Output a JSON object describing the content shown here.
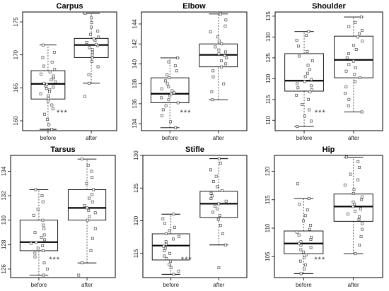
{
  "chart_data": [
    {
      "type": "box",
      "title": "Carpus",
      "categories": [
        "before",
        "after"
      ],
      "ylim": [
        158.5,
        176.5
      ],
      "yticks": [
        160,
        165,
        170,
        175
      ],
      "annotation": "***",
      "boxes": [
        {
          "category": "before",
          "whisker_low": 158.7,
          "q1": 163.3,
          "median": 165.6,
          "q3": 167.6,
          "whisker_high": 171.5
        },
        {
          "category": "after",
          "whisker_low": 165.7,
          "q1": 169.6,
          "median": 171.5,
          "q3": 172.5,
          "whisker_high": 176.3
        }
      ],
      "points": {
        "before": [
          158.7,
          159.4,
          160.2,
          161.0,
          161.8,
          162.4,
          163.0,
          163.4,
          163.8,
          164.1,
          164.4,
          164.7,
          164.9,
          165.1,
          165.3,
          165.5,
          165.7,
          165.9,
          166.2,
          166.5,
          166.8,
          167.1,
          167.4,
          167.8,
          168.3,
          168.9,
          169.6,
          170.4,
          171.5
        ],
        "after": [
          163.7,
          165.7,
          167.0,
          168.2,
          169.0,
          169.6,
          170.0,
          170.4,
          170.8,
          171.1,
          171.4,
          171.6,
          171.9,
          172.2,
          172.4,
          172.7,
          173.1,
          173.6,
          174.2,
          174.9,
          175.6,
          176.3
        ]
      }
    },
    {
      "type": "box",
      "title": "Elbow",
      "categories": [
        "before",
        "after"
      ],
      "ylim": [
        133.3,
        145.2
      ],
      "yticks": [
        134,
        136,
        138,
        140,
        142,
        144
      ],
      "annotation": "***",
      "boxes": [
        {
          "category": "before",
          "whisker_low": 133.6,
          "q1": 136.1,
          "median": 137.0,
          "q3": 138.6,
          "whisker_high": 140.6
        },
        {
          "category": "after",
          "whisker_low": 136.4,
          "q1": 139.7,
          "median": 140.9,
          "q3": 142.0,
          "whisker_high": 145.0
        }
      ],
      "points": {
        "before": [
          133.6,
          134.2,
          134.8,
          135.4,
          135.8,
          136.1,
          136.4,
          136.6,
          136.8,
          137.0,
          137.1,
          137.3,
          137.5,
          137.7,
          138.0,
          138.3,
          138.6,
          138.9,
          139.3,
          139.8,
          140.2,
          140.6
        ],
        "after": [
          136.4,
          137.2,
          138.0,
          138.7,
          139.3,
          139.7,
          140.0,
          140.3,
          140.6,
          140.8,
          141.0,
          141.2,
          141.4,
          141.7,
          142.0,
          142.3,
          142.7,
          143.2,
          143.8,
          144.4,
          145.0
        ]
      }
    },
    {
      "type": "box",
      "title": "Shoulder",
      "categories": [
        "before",
        "after"
      ],
      "ylim": [
        107.5,
        136.0
      ],
      "yticks": [
        110,
        115,
        120,
        125,
        130,
        135
      ],
      "annotation": "***",
      "boxes": [
        {
          "category": "before",
          "whisker_low": 108.5,
          "q1": 117.0,
          "median": 119.5,
          "q3": 126.0,
          "whisker_high": 131.3
        },
        {
          "category": "after",
          "whisker_low": 112.0,
          "q1": 120.2,
          "median": 124.5,
          "q3": 130.2,
          "whisker_high": 134.8
        }
      ],
      "points": {
        "before": [
          108.5,
          109.8,
          111.0,
          112.5,
          113.8,
          115.0,
          116.0,
          116.8,
          117.3,
          117.8,
          118.3,
          118.8,
          119.3,
          119.8,
          120.5,
          121.3,
          122.2,
          123.2,
          124.3,
          125.4,
          126.5,
          127.8,
          129.2,
          130.4,
          131.3
        ],
        "after": [
          112.0,
          113.5,
          115.0,
          116.5,
          118.0,
          119.3,
          120.2,
          121.0,
          121.8,
          122.6,
          123.4,
          124.2,
          125.0,
          126.0,
          127.0,
          128.0,
          129.0,
          130.0,
          130.8,
          131.6,
          132.5,
          133.5,
          134.8
        ]
      }
    },
    {
      "type": "box",
      "title": "Tarsus",
      "categories": [
        "before",
        "after"
      ],
      "ylim": [
        125.3,
        135.3
      ],
      "yticks": [
        126,
        128,
        130,
        132,
        134
      ],
      "annotation": "***",
      "boxes": [
        {
          "category": "before",
          "whisker_low": 125.5,
          "q1": 127.5,
          "median": 128.2,
          "q3": 130.0,
          "whisker_high": 132.5
        },
        {
          "category": "after",
          "whisker_low": 126.5,
          "q1": 130.0,
          "median": 131.0,
          "q3": 132.5,
          "whisker_high": 135.0
        }
      ],
      "points": {
        "before": [
          125.5,
          126.0,
          126.5,
          127.0,
          127.3,
          127.5,
          127.7,
          127.9,
          128.1,
          128.2,
          128.4,
          128.6,
          128.8,
          129.0,
          129.3,
          129.6,
          130.0,
          130.4,
          130.9,
          131.5,
          132.0,
          132.5
        ],
        "after": [
          125.5,
          126.5,
          127.5,
          128.5,
          129.3,
          130.0,
          130.3,
          130.6,
          130.8,
          131.0,
          131.2,
          131.5,
          131.8,
          132.1,
          132.5,
          133.0,
          133.5,
          134.0,
          134.5,
          135.0
        ]
      }
    },
    {
      "type": "box",
      "title": "Stifle",
      "categories": [
        "before",
        "after"
      ],
      "ylim": [
        111.3,
        130.0
      ],
      "yticks": [
        115,
        120,
        125,
        130
      ],
      "annotation": "***",
      "boxes": [
        {
          "category": "before",
          "whisker_low": 111.8,
          "q1": 114.0,
          "median": 116.2,
          "q3": 118.0,
          "whisker_high": 121.0
        },
        {
          "category": "after",
          "whisker_low": 116.3,
          "q1": 120.5,
          "median": 122.6,
          "q3": 124.5,
          "whisker_high": 129.5
        }
      ],
      "points": {
        "before": [
          111.8,
          112.3,
          112.8,
          113.3,
          113.8,
          114.2,
          114.6,
          115.0,
          115.4,
          115.8,
          116.1,
          116.4,
          116.8,
          117.2,
          117.6,
          118.0,
          118.5,
          119.0,
          119.6,
          120.3,
          121.0
        ],
        "after": [
          112.8,
          116.3,
          118.0,
          119.3,
          120.2,
          120.8,
          121.3,
          121.8,
          122.2,
          122.6,
          123.0,
          123.4,
          123.8,
          124.2,
          124.6,
          125.2,
          126.0,
          126.8,
          127.8,
          128.8,
          129.5
        ]
      }
    },
    {
      "type": "box",
      "title": "Hip",
      "categories": [
        "before",
        "after"
      ],
      "ylim": [
        101.3,
        122.8
      ],
      "yticks": [
        105,
        110,
        115,
        120
      ],
      "annotation": "***",
      "boxes": [
        {
          "category": "before",
          "whisker_low": 102.0,
          "q1": 105.5,
          "median": 107.3,
          "q3": 109.5,
          "whisker_high": 115.2
        },
        {
          "category": "after",
          "whisker_low": 105.5,
          "q1": 111.2,
          "median": 113.8,
          "q3": 116.0,
          "whisker_high": 122.5
        }
      ],
      "points": {
        "before": [
          102.0,
          102.8,
          103.5,
          104.2,
          104.8,
          105.3,
          105.8,
          106.2,
          106.6,
          107.0,
          107.3,
          107.6,
          108.0,
          108.4,
          108.8,
          109.3,
          109.8,
          110.5,
          111.3,
          112.2,
          113.2,
          114.2,
          115.2,
          117.8
        ],
        "after": [
          105.5,
          107.0,
          108.5,
          109.8,
          110.8,
          111.5,
          112.0,
          112.5,
          113.0,
          113.4,
          113.8,
          114.2,
          114.6,
          115.0,
          115.5,
          116.1,
          116.8,
          117.6,
          118.5,
          119.5,
          120.7,
          121.7,
          122.5
        ]
      }
    }
  ]
}
